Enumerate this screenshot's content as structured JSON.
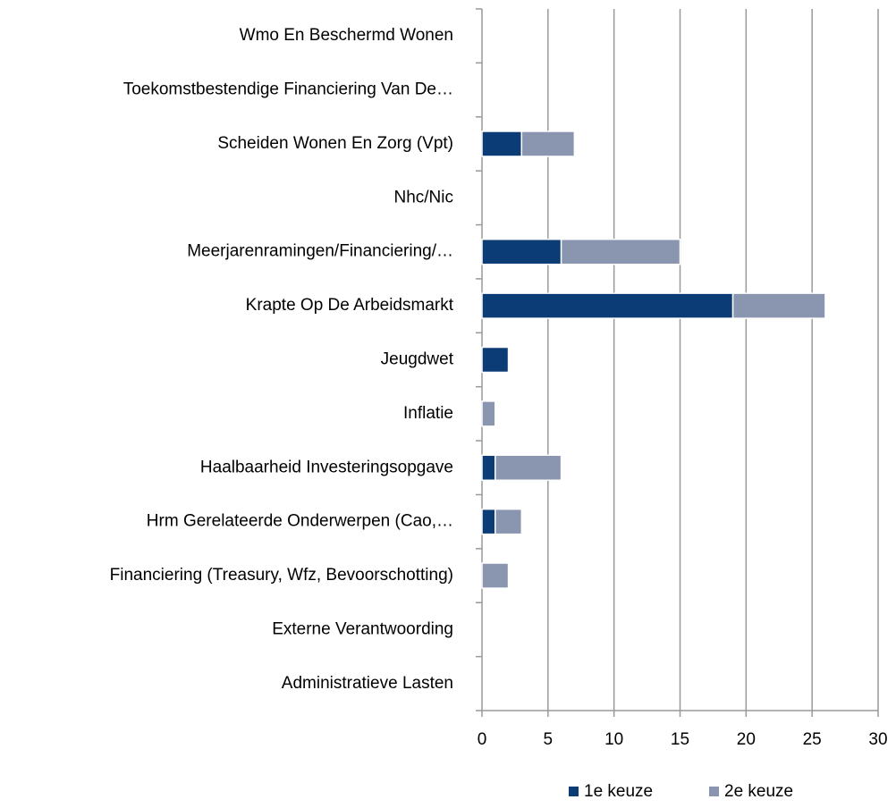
{
  "chart_data": {
    "type": "stacked-barh",
    "categories": [
      "Wmo En Beschermd Wonen",
      "Toekomstbestendige Financiering Van De…",
      "Scheiden Wonen En Zorg (Vpt)",
      "Nhc/Nic",
      "Meerjarenramingen/Financiering/…",
      "Krapte Op De Arbeidsmarkt",
      "Jeugdwet",
      "Inflatie",
      "Haalbaarheid Investeringsopgave",
      "Hrm Gerelateerde Onderwerpen (Cao,…",
      "Financiering (Treasury, Wfz, Bevoorschotting)",
      "Externe Verantwoording",
      "Administratieve Lasten"
    ],
    "series": [
      {
        "name": "1e keuze",
        "color": "#0b3c75",
        "values": [
          0,
          0,
          3,
          0,
          6,
          19,
          2,
          0,
          1,
          1,
          0,
          0,
          0
        ]
      },
      {
        "name": "2e keuze",
        "color": "#8a96b0",
        "values": [
          0,
          0,
          4,
          0,
          9,
          7,
          0,
          1,
          5,
          2,
          2,
          0,
          0
        ]
      }
    ],
    "xlim": [
      0,
      30
    ],
    "xticks": [
      0,
      5,
      10,
      15,
      20,
      25,
      30
    ],
    "grid": true,
    "legend": "bottom"
  }
}
